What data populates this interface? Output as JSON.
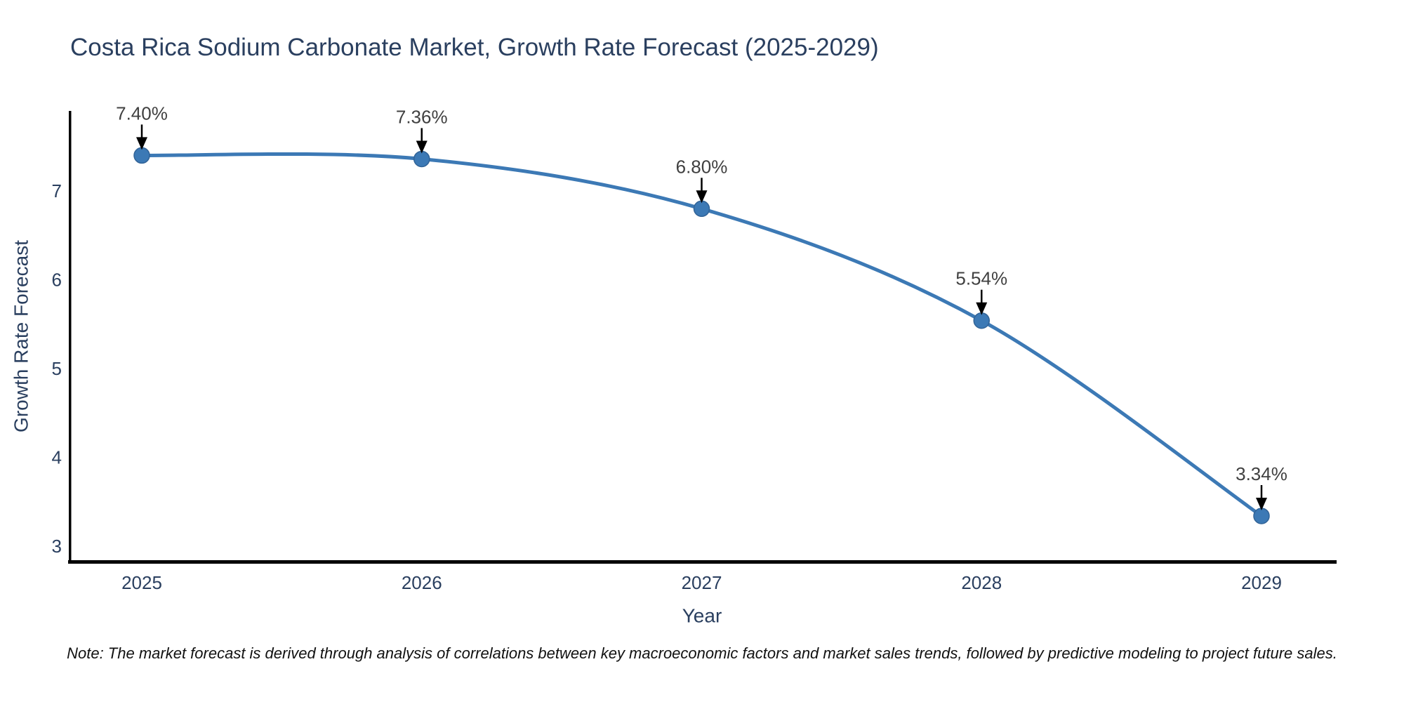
{
  "title": "Costa Rica Sodium Carbonate Market, Growth Rate Forecast (2025-2029)",
  "note": "Note: The market forecast is derived through analysis of correlations between key macroeconomic factors and market sales trends, followed by predictive modeling to project future sales.",
  "chart_data": {
    "type": "line",
    "x": [
      2025,
      2026,
      2027,
      2028,
      2029
    ],
    "values": [
      7.4,
      7.36,
      6.8,
      5.54,
      3.34
    ],
    "point_labels": [
      "7.40%",
      "7.36%",
      "6.80%",
      "5.54%",
      "3.34%"
    ],
    "series_name": "Growth Rate Forecast",
    "title": "Costa Rica Sodium Carbonate Market, Growth Rate Forecast (2025-2029)",
    "xlabel": "Year",
    "ylabel": "Growth Rate Forecast",
    "xtick_labels": [
      "2025",
      "2026",
      "2027",
      "2028",
      "2029"
    ],
    "yticks": [
      3,
      4,
      5,
      6,
      7
    ],
    "ylim": [
      2.8,
      7.9
    ],
    "grid": false,
    "legend": "none",
    "line_color": "#3c79b5",
    "marker_color": "#3c79b5",
    "marker_edge_color": "#316397",
    "arrow_color": "#000000",
    "axis_color": "#000000"
  }
}
